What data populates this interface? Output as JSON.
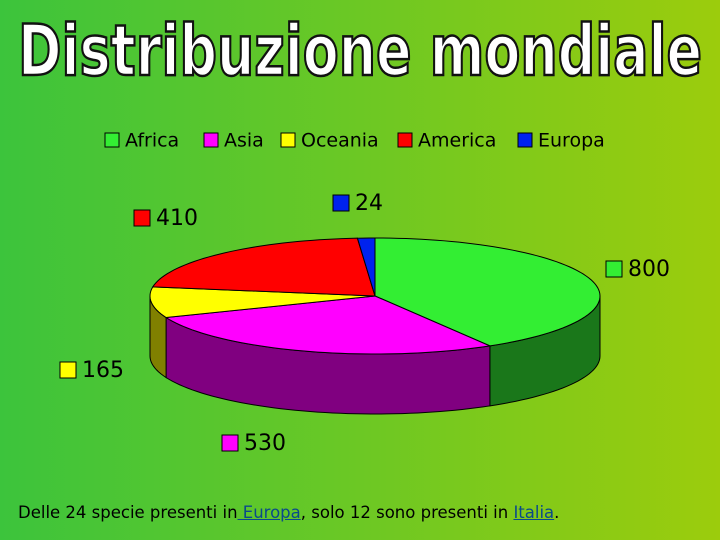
{
  "chart_data": {
    "type": "pie3d",
    "title": "Distribuzione mondiale",
    "categories": [
      "Africa",
      "Asia",
      "Oceania",
      "America",
      "Europa"
    ],
    "values": [
      800,
      530,
      165,
      410,
      24
    ],
    "colors": [
      "#33ee33",
      "#ff00ff",
      "#ffff00",
      "#ff0000",
      "#0022ee"
    ],
    "legend": "top"
  },
  "footnote": {
    "before": "Delle 24 specie presenti in",
    "link1": " Europa",
    "middle": ", solo 12 sono presenti in ",
    "link2": "Italia",
    "after": "."
  }
}
